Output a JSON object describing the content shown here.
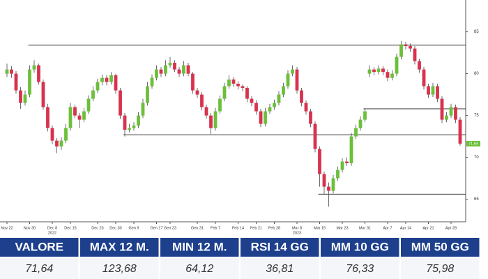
{
  "chart_data": {
    "type": "candlestick",
    "categories": [
      "Nov 22",
      null,
      null,
      null,
      null,
      "Nov 30",
      null,
      null,
      null,
      null,
      "Dec 8",
      null,
      null,
      null,
      "Dec 15",
      null,
      null,
      null,
      null,
      null,
      "Dec 23",
      null,
      null,
      null,
      "Dec 30",
      null,
      null,
      null,
      "Gen 9",
      null,
      null,
      null,
      null,
      "Gen 17",
      null,
      null,
      "Gen 23",
      null,
      null,
      null,
      null,
      null,
      "Gen 31",
      null,
      null,
      null,
      "Feb 7",
      null,
      null,
      null,
      null,
      "Feb 14",
      null,
      null,
      null,
      "Feb 21",
      null,
      null,
      null,
      "Feb 28",
      null,
      null,
      null,
      null,
      "Mar 8",
      null,
      null,
      null,
      null,
      "Mar 15",
      null,
      null,
      null,
      null,
      "Mar 23",
      null,
      null,
      null,
      null,
      "Mar 31",
      null,
      null,
      null,
      null,
      "Apr 7",
      null,
      null,
      null,
      "Apr 14",
      null,
      null,
      null,
      null,
      "Apr 21",
      null,
      null,
      null,
      null,
      "Apr 28",
      null,
      null
    ],
    "year_labels": [
      {
        "index": 10,
        "label": "2022"
      },
      {
        "index": 64,
        "label": "2023"
      }
    ],
    "ohlc": [
      [
        80,
        81.2,
        79.6,
        80.5
      ],
      [
        80.5,
        80.9,
        79.5,
        80
      ],
      [
        80,
        80.3,
        77.6,
        78
      ],
      [
        78,
        78.4,
        75.8,
        76.5
      ],
      [
        76.5,
        78,
        76.2,
        77.5
      ],
      [
        77.5,
        81,
        77.2,
        80.5
      ],
      [
        80.5,
        81.6,
        80.1,
        81
      ],
      [
        81,
        81.2,
        78.7,
        79
      ],
      [
        79,
        79.3,
        75.7,
        76
      ],
      [
        76,
        76.4,
        73.1,
        73.5
      ],
      [
        73.5,
        73.8,
        71.6,
        72
      ],
      [
        72,
        72.3,
        70.5,
        71.3
      ],
      [
        71.3,
        72.4,
        70.9,
        72
      ],
      [
        72,
        74,
        71.7,
        73.5
      ],
      [
        73.5,
        76.5,
        73.2,
        76
      ],
      [
        76,
        76.3,
        74.7,
        75
      ],
      [
        75,
        75.3,
        73.5,
        74.5
      ],
      [
        74.5,
        75.9,
        74.2,
        75.5
      ],
      [
        75.5,
        77.4,
        75.2,
        77
      ],
      [
        77,
        78.5,
        76.7,
        78
      ],
      [
        78,
        79.4,
        77.7,
        79
      ],
      [
        79,
        79.9,
        78.6,
        79.5
      ],
      [
        79.5,
        79.8,
        78.6,
        79
      ],
      [
        79,
        80.2,
        78.7,
        79.8
      ],
      [
        79.8,
        80,
        77.6,
        78
      ],
      [
        78,
        78.3,
        74.6,
        75
      ],
      [
        75,
        75.3,
        72.5,
        73.3
      ],
      [
        73.3,
        74,
        73,
        73.5
      ],
      [
        73.5,
        74.2,
        73.2,
        73.8
      ],
      [
        73.8,
        75.4,
        73.5,
        75
      ],
      [
        75,
        77,
        74.7,
        76.5
      ],
      [
        76.5,
        79,
        76.2,
        78.5
      ],
      [
        78.5,
        79.9,
        78.2,
        79.5
      ],
      [
        79.5,
        81,
        79.2,
        80.5
      ],
      [
        80.5,
        80.8,
        79.6,
        80
      ],
      [
        80,
        81.6,
        79.7,
        81
      ],
      [
        81,
        82,
        80.7,
        81.3
      ],
      [
        81.3,
        81.6,
        80.2,
        80.5
      ],
      [
        80.5,
        80.8,
        79.6,
        80
      ],
      [
        80,
        81.5,
        79.7,
        81
      ],
      [
        81,
        81.3,
        79.7,
        80
      ],
      [
        80,
        80.2,
        77.6,
        78
      ],
      [
        78,
        78.3,
        77.1,
        77.5
      ],
      [
        77.5,
        77.8,
        75.6,
        76
      ],
      [
        76,
        76.3,
        74.6,
        75
      ],
      [
        75,
        75.3,
        72.8,
        73.5
      ],
      [
        73.5,
        75.9,
        73.2,
        75.5
      ],
      [
        75.5,
        77.4,
        75.2,
        77
      ],
      [
        77,
        78.9,
        76.7,
        78.5
      ],
      [
        78.5,
        79.8,
        78.2,
        79.3
      ],
      [
        79.3,
        79.6,
        78.4,
        78.8
      ],
      [
        78.8,
        79.1,
        78.1,
        78.5
      ],
      [
        78.5,
        78.7,
        77.9,
        78.3
      ],
      [
        78.3,
        78.5,
        76.6,
        77
      ],
      [
        77,
        77.3,
        76.1,
        76.5
      ],
      [
        76.5,
        76.8,
        75.1,
        75.5
      ],
      [
        75.5,
        75.8,
        73.6,
        74
      ],
      [
        74,
        75.9,
        73.7,
        75.5
      ],
      [
        75.5,
        76.4,
        75.2,
        76
      ],
      [
        76,
        76.9,
        75.7,
        76.5
      ],
      [
        76.5,
        77.9,
        76.2,
        77.5
      ],
      [
        77.5,
        78.9,
        77.2,
        78.5
      ],
      [
        78.5,
        80.4,
        78.2,
        80
      ],
      [
        80,
        81,
        79.7,
        80.5
      ],
      [
        80.5,
        80.8,
        77.6,
        78
      ],
      [
        78,
        78.3,
        76.1,
        76.5
      ],
      [
        76.5,
        76.8,
        75.1,
        75.5
      ],
      [
        75.5,
        75.8,
        73.6,
        74
      ],
      [
        74,
        74.3,
        70.6,
        71
      ],
      [
        71,
        71.3,
        66.5,
        68
      ],
      [
        68,
        68.3,
        65.6,
        66.5
      ],
      [
        66.5,
        67,
        64.1,
        66
      ],
      [
        66,
        67.9,
        65.7,
        67.5
      ],
      [
        67.5,
        68.9,
        67.2,
        68.5
      ],
      [
        68.5,
        69.9,
        68.2,
        69.5
      ],
      [
        69.5,
        70,
        69,
        69.3
      ],
      [
        69.3,
        72.9,
        69,
        72.5
      ],
      [
        72.5,
        73.9,
        72.2,
        73.5
      ],
      [
        73.5,
        74.9,
        73.2,
        74.5
      ],
      [
        74.5,
        75.9,
        74.2,
        75.5
      ],
      [
        80,
        81,
        79.6,
        80.5
      ],
      [
        80.5,
        80.8,
        79.8,
        80.2
      ],
      [
        80.2,
        81,
        79.9,
        80.6
      ],
      [
        80.6,
        80.9,
        79.8,
        80.2
      ],
      [
        80.2,
        80.5,
        79.1,
        79.5
      ],
      [
        79.5,
        80.4,
        79.2,
        80
      ],
      [
        80,
        82.4,
        79.7,
        82
      ],
      [
        82,
        83.9,
        81.7,
        83.5
      ],
      [
        83.5,
        83.8,
        82.9,
        83.3
      ],
      [
        83.3,
        83.6,
        82.6,
        83
      ],
      [
        83,
        83.3,
        81.1,
        81.5
      ],
      [
        81.5,
        81.8,
        80.1,
        80.5
      ],
      [
        80.5,
        80.8,
        78.1,
        78.5
      ],
      [
        78.5,
        78.8,
        77.1,
        77.5
      ],
      [
        77.5,
        78.9,
        77.2,
        78.5
      ],
      [
        78.5,
        78.8,
        76.6,
        77
      ],
      [
        77,
        77.3,
        74.1,
        74.5
      ],
      [
        74.5,
        75.4,
        74.2,
        75
      ],
      [
        75,
        76.4,
        74.7,
        76
      ],
      [
        76,
        76.3,
        74.1,
        74.5
      ],
      [
        74.5,
        74.8,
        71.4,
        71.64
      ]
    ],
    "up_color": "#6cbf3a",
    "down_color": "#d8324e",
    "levels": [
      {
        "value": 83.4,
        "from": 5
      },
      {
        "value": 75.8,
        "from": 79
      },
      {
        "value": 72.7,
        "from": 26
      },
      {
        "value": 65.6,
        "from": 69
      }
    ],
    "last_price": 71.64,
    "ylim": [
      62.3,
      88.8
    ],
    "yticks": [
      65,
      70,
      75,
      80,
      85
    ]
  },
  "table": {
    "headers": [
      "VALORE",
      "MAX 12 M.",
      "MIN 12 M.",
      "RSI 14 GG",
      "MM 10 GG",
      "MM 50 GG"
    ],
    "values": [
      "71,64",
      "123,68",
      "64,12",
      "36,81",
      "76,33",
      "75,98"
    ]
  }
}
